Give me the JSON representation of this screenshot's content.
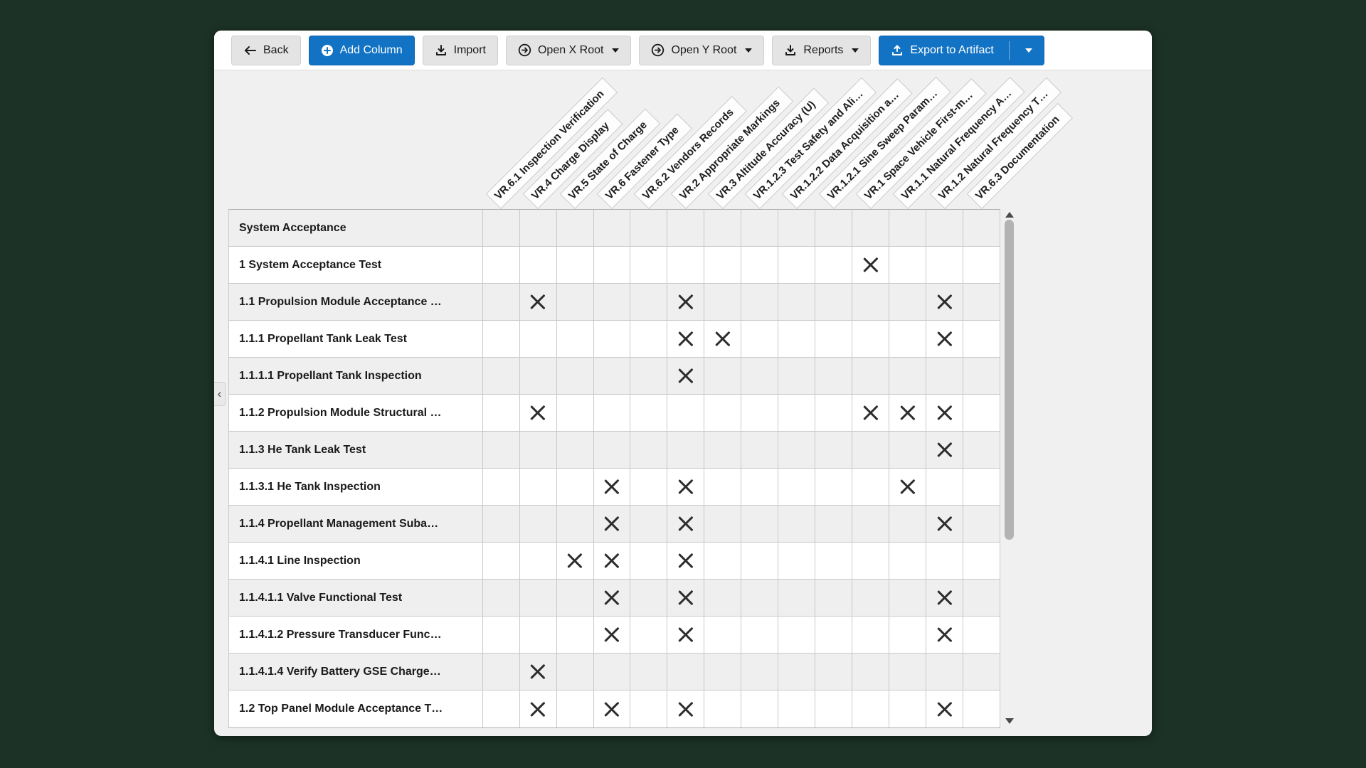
{
  "window": {
    "background_color": "#1c3227",
    "accent_color": "#1273c4"
  },
  "toolbar": {
    "back": "Back",
    "add_column": "Add Column",
    "import": "Import",
    "open_x_root": "Open X Root",
    "open_y_root": "Open Y Root",
    "reports": "Reports",
    "export_to_artifact": "Export to Artifact",
    "icons": {
      "back": "left-arrow-icon",
      "add_column": "plus-circle-icon",
      "import": "download-tray-icon",
      "open_x_root": "circle-arrow-right-icon",
      "open_y_root": "circle-arrow-right-icon",
      "reports": "download-tray-icon",
      "export_to_artifact": "upload-tray-icon",
      "dropdown": "caret-down-icon"
    }
  },
  "matrix": {
    "mark_glyph": "X",
    "columns": [
      "VR.6.1 Inspection Verification",
      "VR.4 Charge Display",
      "VR.5 State of Charge",
      "VR.6 Fastener Type",
      "VR.6.2 Vendors Records",
      "VR.2 Appropriate Markings",
      "VR.3 Altitude Accuracy (U)",
      "VR.1.2.3 Test Safety and Ali…",
      "VR.1.2.2 Data Acquisition a…",
      "VR.1.2.1 Sine Sweep Param…",
      "VR.1 Space Vehicle First-m…",
      "VR.1.1 Natural Frequency A…",
      "VR.1.2 Natural Frequency T…",
      "VR.6.3 Documentation"
    ],
    "rows": [
      {
        "label": "System Acceptance",
        "marks": []
      },
      {
        "label": "1 System Acceptance Test",
        "marks": [
          11
        ]
      },
      {
        "label": "1.1 Propulsion Module Acceptance …",
        "marks": [
          2,
          6,
          13
        ]
      },
      {
        "label": "1.1.1 Propellant Tank Leak Test",
        "marks": [
          6,
          7,
          13
        ]
      },
      {
        "label": "1.1.1.1 Propellant Tank Inspection",
        "marks": [
          6
        ]
      },
      {
        "label": "1.1.2 Propulsion Module Structural …",
        "marks": [
          2,
          11,
          12,
          13
        ]
      },
      {
        "label": "1.1.3 He Tank Leak Test",
        "marks": [
          13
        ]
      },
      {
        "label": "1.1.3.1 He Tank Inspection",
        "marks": [
          4,
          6,
          12
        ]
      },
      {
        "label": "1.1.4 Propellant Management Suba…",
        "marks": [
          4,
          6,
          13
        ]
      },
      {
        "label": "1.1.4.1 Line Inspection",
        "marks": [
          3,
          4,
          6
        ]
      },
      {
        "label": "1.1.4.1.1 Valve Functional Test",
        "marks": [
          4,
          6,
          13
        ]
      },
      {
        "label": "1.1.4.1.2 Pressure Transducer Func…",
        "marks": [
          4,
          6,
          13
        ]
      },
      {
        "label": "1.1.4.1.4 Verify Battery GSE Charge…",
        "marks": [
          2
        ]
      },
      {
        "label": "1.2 Top Panel Module Acceptance T…",
        "marks": [
          2,
          4,
          6,
          13
        ]
      }
    ]
  },
  "side": {
    "collapse_glyph": "‹"
  },
  "scrollbar": {
    "up_icon": "triangle-up",
    "down_icon": "triangle-down"
  }
}
